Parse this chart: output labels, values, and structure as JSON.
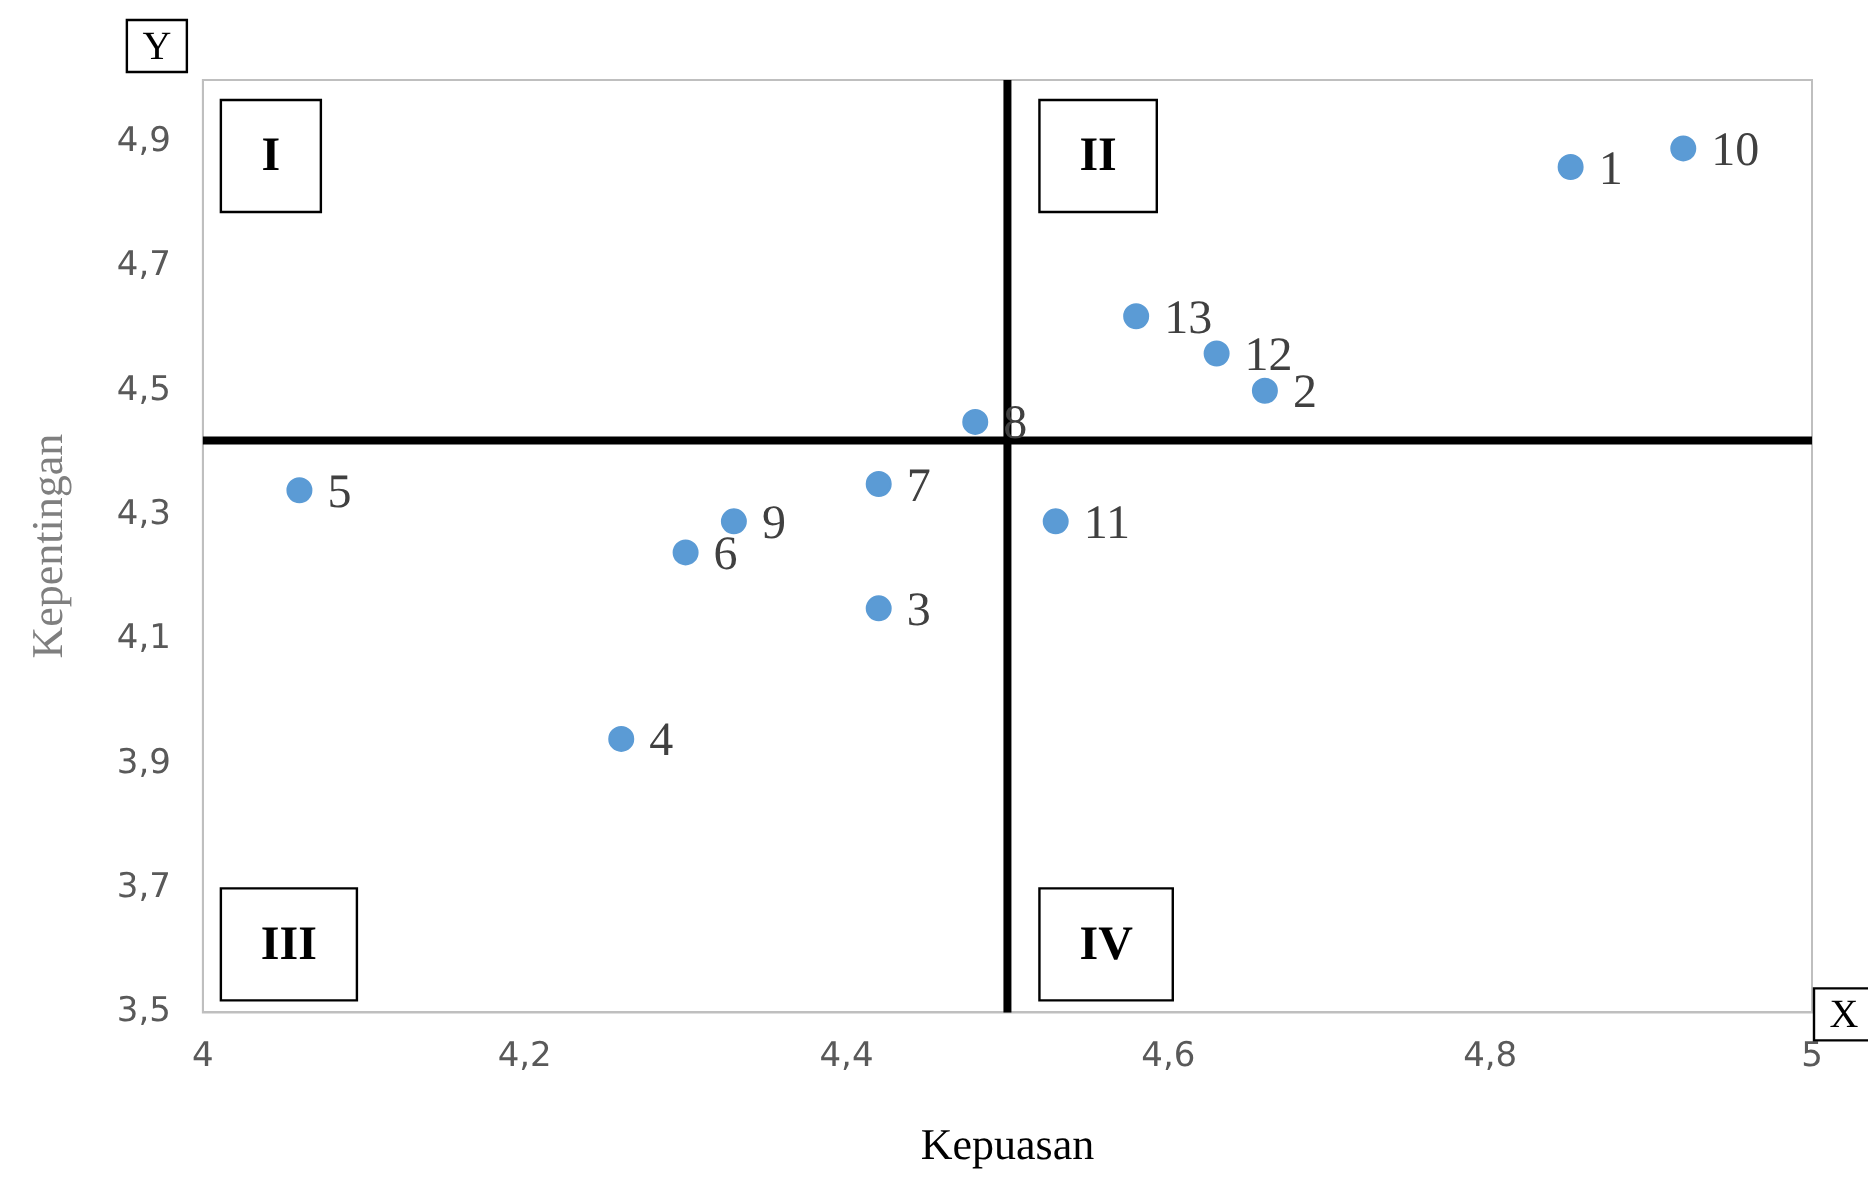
{
  "chart_data": {
    "type": "scatter",
    "xlabel": "Kepuasan",
    "ylabel": "Kepentingan",
    "x": [
      4.85,
      4.66,
      4.42,
      4.26,
      4.06,
      4.3,
      4.42,
      4.48,
      4.33,
      4.92,
      4.53,
      4.63,
      4.58
    ],
    "series": [
      {
        "color": "#5b9bd5",
        "values": [
          4.86,
          4.5,
          4.15,
          3.94,
          4.34,
          4.24,
          4.35,
          4.45,
          4.29,
          4.89,
          4.29,
          4.56,
          4.62
        ]
      }
    ],
    "xlim": [
      4,
      5
    ],
    "xticks": [
      4,
      {
        "value": 4.2,
        "label": "4,2"
      },
      {
        "value": 4.4,
        "label": "4,4"
      },
      {
        "value": 4.6,
        "label": "4,6"
      },
      {
        "value": 4.8,
        "label": "4,8"
      },
      5
    ],
    "ylim": [
      3.5,
      5
    ],
    "yticks": [
      {
        "value": 3.5,
        "label": "3,5"
      },
      {
        "value": 3.7,
        "label": "3,7"
      },
      {
        "value": 3.9,
        "label": "3,9"
      },
      {
        "value": 4.1,
        "label": "4,1"
      },
      {
        "value": 4.3,
        "label": "4,3"
      },
      {
        "value": 4.5,
        "label": "4,5"
      },
      {
        "value": 4.7,
        "label": "4,7"
      },
      {
        "value": 4.9,
        "label": "4,9"
      }
    ],
    "grid": false,
    "legend": false,
    "marker": "circle",
    "ref_lines": [
      {
        "axis": "x",
        "value": 4.5,
        "color": "#000000"
      },
      {
        "axis": "y",
        "value": 4.42,
        "color": "#000000"
      }
    ],
    "annotations": [
      {
        "text": "1",
        "x": 4.85,
        "y": 4.86
      },
      {
        "text": "2",
        "x": 4.66,
        "y": 4.5
      },
      {
        "text": "3",
        "x": 4.42,
        "y": 4.15
      },
      {
        "text": "4",
        "x": 4.26,
        "y": 3.94
      },
      {
        "text": "5",
        "x": 4.06,
        "y": 4.34
      },
      {
        "text": "6",
        "x": 4.3,
        "y": 4.24
      },
      {
        "text": "7",
        "x": 4.42,
        "y": 4.35
      },
      {
        "text": "8",
        "x": 4.48,
        "y": 4.45
      },
      {
        "text": "9",
        "x": 4.33,
        "y": 4.29
      },
      {
        "text": "10",
        "x": 4.92,
        "y": 4.89
      },
      {
        "text": "11",
        "x": 4.53,
        "y": 4.29
      },
      {
        "text": "12",
        "x": 4.63,
        "y": 4.56
      },
      {
        "text": "13",
        "x": 4.58,
        "y": 4.62
      },
      "I",
      "II",
      "III",
      "IV",
      "Y",
      "X"
    ]
  }
}
